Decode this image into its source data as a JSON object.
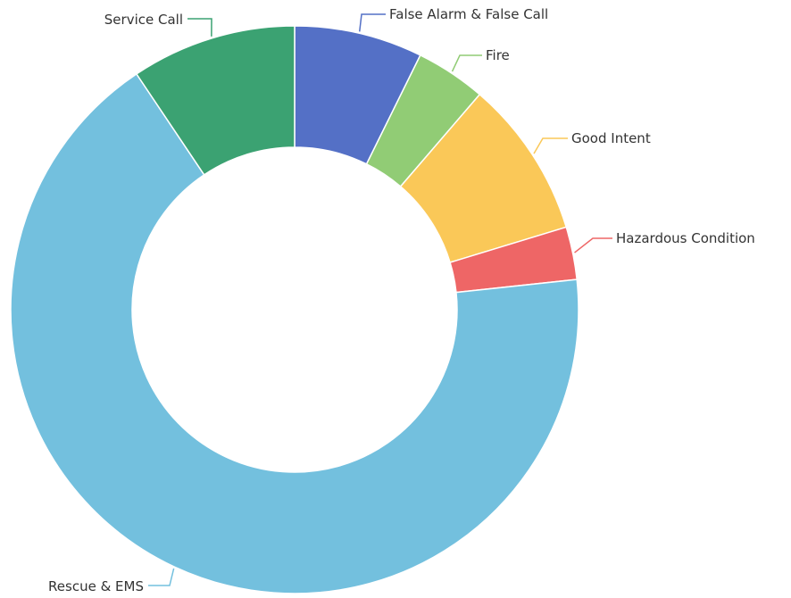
{
  "chart_data": {
    "type": "pie",
    "variant": "donut",
    "title": "",
    "legend": "none",
    "slices": [
      {
        "label": "False Alarm & False Call",
        "value": 7.3,
        "color": "#5470c6"
      },
      {
        "label": "Fire",
        "value": 4.0,
        "color": "#91cc75"
      },
      {
        "label": "Good Intent",
        "value": 9.0,
        "color": "#fac858"
      },
      {
        "label": "Hazardous Condition",
        "value": 3.0,
        "color": "#ee6666"
      },
      {
        "label": "Rescue & EMS",
        "value": 67.3,
        "color": "#73c0de"
      },
      {
        "label": "Service Call",
        "value": 9.4,
        "color": "#3ba272"
      }
    ]
  }
}
